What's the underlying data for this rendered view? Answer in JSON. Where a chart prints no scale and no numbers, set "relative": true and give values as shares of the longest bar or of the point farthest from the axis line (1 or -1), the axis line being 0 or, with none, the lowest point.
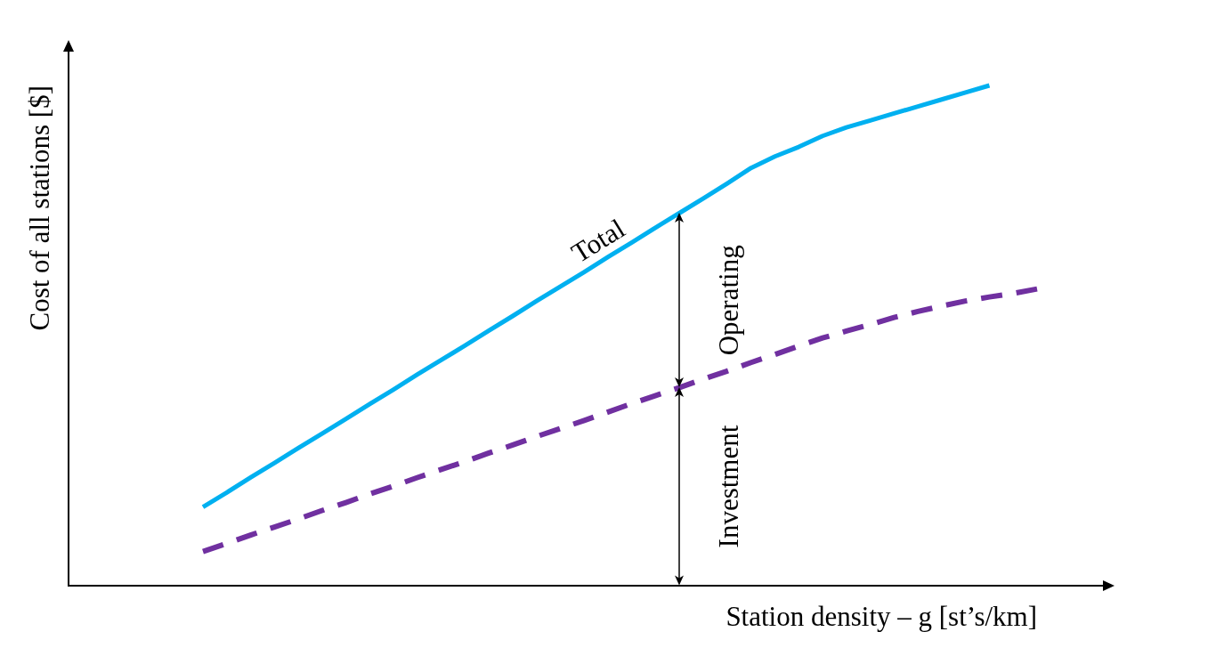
{
  "chart_data": {
    "type": "line",
    "relative": true,
    "xlabel": "Station density – g [st’s/km]",
    "ylabel": "Cost of all stations [$]",
    "marker": "none",
    "categories": [
      null,
      null,
      null,
      null,
      null,
      null,
      null,
      null,
      null,
      null,
      null,
      null,
      null,
      null,
      null,
      null,
      null,
      null,
      null,
      null,
      null,
      null,
      null,
      null,
      null,
      null,
      null,
      null,
      null,
      null,
      null,
      null,
      null,
      null,
      null,
      null
    ],
    "series": [
      {
        "name": "Total",
        "color": "#00b0f0",
        "line_style": "solid",
        "values": [
          0.157,
          0.186,
          0.216,
          0.245,
          0.275,
          0.304,
          0.333,
          0.363,
          0.392,
          0.422,
          0.451,
          0.48,
          0.51,
          0.539,
          0.569,
          0.598,
          0.627,
          0.657,
          0.686,
          0.716,
          0.745,
          0.774,
          0.804,
          0.835,
          0.858,
          0.877,
          0.899,
          0.916,
          0.93,
          0.944,
          0.958,
          0.972,
          0.986,
          1,
          null,
          null
        ]
      },
      {
        "color": "#7030a0",
        "line_style": "dashed",
        "values": [
          0.068,
          0.084,
          0.101,
          0.117,
          0.133,
          0.15,
          0.166,
          0.183,
          0.199,
          0.216,
          0.232,
          0.248,
          0.265,
          0.281,
          0.298,
          0.314,
          0.33,
          0.347,
          0.364,
          0.38,
          0.396,
          0.413,
          0.429,
          0.446,
          0.462,
          0.479,
          0.495,
          0.509,
          0.522,
          0.536,
          0.548,
          0.559,
          0.569,
          0.577,
          0.584,
          0.593
        ]
      }
    ],
    "annotations": [
      "Operating",
      "Investment"
    ]
  }
}
